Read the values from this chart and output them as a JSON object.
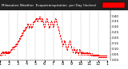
{
  "title": "Milwaukee Weather  Evapotranspiration  per Day (Inches)",
  "bg_color": "#ffffff",
  "plot_bg": "#ffffff",
  "header_bg": "#222222",
  "title_color": "#ffffff",
  "dot_color": "#ff0000",
  "grid_color": "#aaaaaa",
  "axis_label_color": "#000000",
  "ylabel_color": "#000000",
  "legend_color": "#ff0000",
  "x_months": [
    "1",
    "2",
    "3",
    "4",
    "5",
    "6",
    "7",
    "8",
    "9",
    "10",
    "11",
    "12",
    "1"
  ],
  "x_ticks": [
    0,
    31,
    59,
    90,
    120,
    151,
    181,
    212,
    243,
    273,
    304,
    334,
    365
  ],
  "ylim": [
    0,
    0.45
  ],
  "yticks": [
    0.0,
    0.05,
    0.1,
    0.15,
    0.2,
    0.25,
    0.3,
    0.35,
    0.4
  ],
  "x_data": [
    1,
    2,
    3,
    4,
    5,
    6,
    7,
    8,
    9,
    10,
    11,
    12,
    13,
    14,
    15,
    16,
    17,
    18,
    19,
    20,
    21,
    22,
    23,
    24,
    25,
    26,
    27,
    28,
    29,
    30,
    31,
    32,
    33,
    34,
    35,
    36,
    37,
    38,
    39,
    40,
    41,
    42,
    43,
    44,
    45,
    46,
    47,
    48,
    49,
    50,
    51,
    52,
    53,
    54,
    55,
    56,
    57,
    58,
    59,
    60,
    61,
    62,
    63,
    64,
    65,
    66,
    67,
    68,
    69,
    70,
    71,
    72,
    73,
    74,
    75,
    76,
    77,
    78,
    79,
    80,
    81,
    82,
    83,
    84,
    85,
    86,
    87,
    88,
    89,
    90,
    91,
    92,
    93,
    94,
    95,
    96,
    97,
    98,
    99,
    100,
    101,
    102,
    103,
    104,
    105,
    106,
    107,
    108,
    109,
    110,
    111,
    112,
    113,
    114,
    115,
    116,
    117,
    118,
    119,
    120,
    121,
    122,
    123,
    124,
    125,
    126,
    127,
    128,
    129,
    130,
    131,
    132,
    133,
    134,
    135,
    136,
    137,
    138,
    139,
    140,
    141,
    142,
    143,
    144,
    145,
    146,
    147,
    148,
    149,
    150,
    151,
    152,
    153,
    154,
    155,
    156,
    157,
    158,
    159,
    160,
    161,
    162,
    163,
    164,
    165,
    166,
    167,
    168,
    169,
    170,
    171,
    172,
    173,
    174,
    175,
    176,
    177,
    178,
    179,
    180,
    181,
    182,
    183,
    184,
    185,
    186,
    187,
    188,
    189,
    190,
    191,
    192,
    193,
    194,
    195,
    196,
    197,
    198,
    199,
    200,
    201,
    202,
    203,
    204,
    205,
    206,
    207,
    208,
    209,
    210,
    211,
    212,
    213,
    214,
    215,
    216,
    217,
    218,
    219,
    220,
    221,
    222,
    223,
    224,
    225,
    226,
    227,
    228,
    229,
    230,
    231,
    232,
    233,
    234,
    235,
    236,
    237,
    238,
    239,
    240,
    241,
    242,
    243,
    244,
    245,
    246,
    247,
    248,
    249,
    250,
    251,
    252,
    253,
    254,
    255,
    256,
    257,
    258,
    259,
    260,
    261,
    262,
    263,
    264,
    265,
    266,
    267,
    268,
    269,
    270,
    271,
    272,
    273,
    274,
    275,
    276,
    277,
    278,
    279,
    280,
    281,
    282,
    283,
    284,
    285,
    286,
    287,
    288,
    289,
    290,
    291,
    292,
    293,
    294,
    295,
    296,
    297,
    298,
    299,
    300,
    301,
    302,
    303,
    304,
    305,
    306,
    307,
    308,
    309,
    310,
    311,
    312,
    313,
    314,
    315,
    316,
    317,
    318,
    319,
    320,
    321,
    322,
    323,
    324,
    325,
    326,
    327,
    328,
    329,
    330,
    331,
    332,
    333,
    334,
    335,
    336,
    337,
    338,
    339,
    340,
    341,
    342,
    343,
    344,
    345,
    346,
    347,
    348,
    349,
    350,
    351,
    352,
    353,
    354,
    355,
    356,
    357,
    358,
    359,
    360,
    361,
    362,
    363,
    364,
    365
  ],
  "y_data": [
    0.05,
    0.04,
    0.06,
    0.05,
    0.07,
    0.06,
    0.05,
    0.08,
    0.07,
    0.06,
    0.07,
    0.08,
    0.06,
    0.07,
    0.08,
    0.05,
    0.07,
    0.06,
    0.08,
    0.07,
    0.06,
    0.07,
    0.08,
    0.06,
    0.07,
    0.08,
    0.06,
    0.07,
    0.08,
    0.07,
    0.06,
    0.08,
    0.07,
    0.09,
    0.08,
    0.09,
    0.1,
    0.09,
    0.1,
    0.11,
    0.1,
    0.11,
    0.12,
    0.11,
    0.1,
    0.12,
    0.11,
    0.12,
    0.13,
    0.12,
    0.13,
    0.14,
    0.13,
    0.14,
    0.15,
    0.14,
    0.15,
    0.14,
    0.15,
    0.16,
    0.17,
    0.18,
    0.17,
    0.19,
    0.18,
    0.2,
    0.19,
    0.21,
    0.2,
    0.22,
    0.21,
    0.23,
    0.22,
    0.24,
    0.23,
    0.25,
    0.24,
    0.26,
    0.25,
    0.27,
    0.26,
    0.27,
    0.28,
    0.27,
    0.29,
    0.28,
    0.29,
    0.3,
    0.29,
    0.3,
    0.31,
    0.32,
    0.33,
    0.32,
    0.33,
    0.32,
    0.31,
    0.3,
    0.29,
    0.3,
    0.31,
    0.32,
    0.33,
    0.32,
    0.31,
    0.3,
    0.29,
    0.3,
    0.31,
    0.32,
    0.33,
    0.34,
    0.35,
    0.34,
    0.35,
    0.36,
    0.35,
    0.36,
    0.37,
    0.36,
    0.37,
    0.38,
    0.37,
    0.38,
    0.37,
    0.36,
    0.35,
    0.36,
    0.37,
    0.38,
    0.37,
    0.38,
    0.39,
    0.38,
    0.39,
    0.38,
    0.37,
    0.36,
    0.35,
    0.36,
    0.37,
    0.38,
    0.37,
    0.36,
    0.35,
    0.34,
    0.33,
    0.32,
    0.31,
    0.3,
    0.31,
    0.32,
    0.33,
    0.34,
    0.35,
    0.36,
    0.37,
    0.38,
    0.37,
    0.36,
    0.35,
    0.34,
    0.33,
    0.32,
    0.31,
    0.3,
    0.29,
    0.3,
    0.31,
    0.32,
    0.33,
    0.34,
    0.35,
    0.36,
    0.35,
    0.34,
    0.33,
    0.32,
    0.31,
    0.3,
    0.31,
    0.32,
    0.33,
    0.34,
    0.35,
    0.36,
    0.37,
    0.38,
    0.37,
    0.36,
    0.35,
    0.34,
    0.33,
    0.32,
    0.31,
    0.3,
    0.29,
    0.28,
    0.27,
    0.26,
    0.25,
    0.24,
    0.23,
    0.22,
    0.21,
    0.2,
    0.19,
    0.18,
    0.17,
    0.16,
    0.15,
    0.14,
    0.13,
    0.14,
    0.15,
    0.16,
    0.17,
    0.18,
    0.17,
    0.16,
    0.15,
    0.14,
    0.13,
    0.12,
    0.11,
    0.1,
    0.09,
    0.1,
    0.11,
    0.12,
    0.13,
    0.14,
    0.15,
    0.16,
    0.17,
    0.18,
    0.17,
    0.16,
    0.15,
    0.14,
    0.13,
    0.12,
    0.11,
    0.1,
    0.09,
    0.08,
    0.07,
    0.08,
    0.09,
    0.1,
    0.11,
    0.1,
    0.09,
    0.08,
    0.07,
    0.06,
    0.07,
    0.08,
    0.09,
    0.1,
    0.09,
    0.08,
    0.07,
    0.06,
    0.05,
    0.06,
    0.07,
    0.08,
    0.09,
    0.1,
    0.09,
    0.08,
    0.07,
    0.06,
    0.05,
    0.06,
    0.07,
    0.08,
    0.07,
    0.06,
    0.05,
    0.06,
    0.07,
    0.06,
    0.05,
    0.06,
    0.07,
    0.06,
    0.07,
    0.06,
    0.05,
    0.06,
    0.07,
    0.06,
    0.05,
    0.06,
    0.07,
    0.06,
    0.05,
    0.06,
    0.07,
    0.06,
    0.05,
    0.06,
    0.05,
    0.06,
    0.05,
    0.06,
    0.05,
    0.04,
    0.05,
    0.06,
    0.05,
    0.04,
    0.05,
    0.04,
    0.05,
    0.04,
    0.05,
    0.04,
    0.05,
    0.04,
    0.05,
    0.04,
    0.05,
    0.04,
    0.05,
    0.04,
    0.05,
    0.04,
    0.05,
    0.04,
    0.05,
    0.04,
    0.03,
    0.04,
    0.03,
    0.04,
    0.03,
    0.04,
    0.03,
    0.04,
    0.03,
    0.04,
    0.03,
    0.04,
    0.03,
    0.04,
    0.03,
    0.04,
    0.03,
    0.04,
    0.03,
    0.04,
    0.03,
    0.04,
    0.03,
    0.04,
    0.03,
    0.04,
    0.03,
    0.04,
    0.03,
    0.04,
    0.03
  ]
}
